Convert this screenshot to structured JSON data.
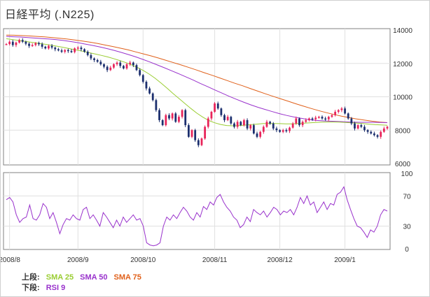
{
  "title": "日経平均 (.N225)",
  "legend": {
    "upper_label": "上段:",
    "lower_label": "下段:",
    "sma25": "SMA 25",
    "sma50": "SMA 50",
    "sma75": "SMA 75",
    "rsi9": "RSI 9"
  },
  "colors": {
    "up_candle": "#e8245a",
    "down_candle": "#1c2f6e",
    "sma25": "#9acd32",
    "sma50": "#9932cc",
    "sma75": "#e0601a",
    "rsi": "#9932cc",
    "grid": "#e0e0e0",
    "frame": "#808080"
  },
  "chart_data": [
    {
      "type": "candlestick",
      "name": "price",
      "title": "",
      "ylim": [
        6000,
        14000
      ],
      "y_ticks": [
        "14000",
        "12000",
        "10000",
        "8000",
        "6000"
      ],
      "y_tick_values": [
        14000,
        12000,
        10000,
        8000,
        6000
      ],
      "x_ticks": [
        "2008/8",
        "2008/9",
        "2008/10",
        "2008/11",
        "2008/12",
        "2009/1"
      ],
      "x_tick_index": [
        1,
        22,
        42,
        64,
        84,
        104
      ],
      "grid": true,
      "closes": [
        13160,
        13300,
        13100,
        13250,
        13400,
        13300,
        13180,
        13050,
        13100,
        13220,
        13150,
        13000,
        12900,
        13050,
        12950,
        12850,
        12780,
        12700,
        12800,
        12750,
        12680,
        12900,
        12950,
        12850,
        12700,
        12500,
        12300,
        12200,
        12100,
        11950,
        11800,
        11600,
        11750,
        11950,
        12050,
        11850,
        11700,
        11950,
        12050,
        11900,
        11600,
        11300,
        10900,
        10500,
        10200,
        9800,
        9200,
        8600,
        8300,
        8900,
        8700,
        9000,
        8500,
        8800,
        9200,
        8300,
        7600,
        8000,
        7400,
        7100,
        7500,
        8200,
        8700,
        9100,
        9600,
        9300,
        8900,
        8600,
        8800,
        8400,
        8200,
        8500,
        8300,
        8600,
        8100,
        8300,
        7800,
        7600,
        7900,
        8200,
        8500,
        8400,
        8100,
        8000,
        7900,
        8000,
        7950,
        8150,
        8400,
        8700,
        8300,
        8500,
        8600,
        8700,
        8650,
        8750,
        8800,
        8700,
        8650,
        8800,
        8900,
        9100,
        9200,
        9300,
        9000,
        8700,
        8400,
        8100,
        8300,
        8200,
        8000,
        7900,
        7800,
        7700,
        7600,
        7900,
        8100,
        8200
      ],
      "sma25": [
        13480,
        13430,
        13380,
        13330,
        13280,
        13230,
        13180,
        13120,
        13060,
        13000,
        12930,
        12860,
        12790,
        12720,
        12640,
        12560,
        12480,
        12390,
        12290,
        12180,
        12060,
        11920,
        11760,
        11580,
        11360,
        11110,
        10820,
        10520,
        10200,
        9900,
        9600,
        9300,
        9020,
        8780,
        8580,
        8440,
        8340,
        8280,
        8260,
        8270,
        8300,
        8330,
        8360,
        8390,
        8400,
        8400,
        8390,
        8380,
        8380,
        8400,
        8420,
        8440,
        8460,
        8480,
        8490,
        8490,
        8480,
        8460,
        8440,
        8420,
        8390,
        8360,
        8330,
        8310,
        8290
      ],
      "sma50": [
        13620,
        13600,
        13580,
        13550,
        13520,
        13490,
        13460,
        13420,
        13370,
        13310,
        13240,
        13160,
        13080,
        12990,
        12890,
        12780,
        12660,
        12530,
        12390,
        12240,
        12080,
        11910,
        11740,
        11560,
        11380,
        11190,
        11000,
        10800,
        10610,
        10410,
        10220,
        10030,
        9850,
        9680,
        9520,
        9370,
        9240,
        9110,
        8990,
        8880,
        8790,
        8710,
        8640,
        8590,
        8560,
        8540,
        8520,
        8500,
        8480,
        8470,
        8470,
        8470,
        8460,
        8450
      ],
      "sma75": [
        13700,
        13690,
        13670,
        13650,
        13620,
        13590,
        13550,
        13510,
        13460,
        13400,
        13340,
        13270,
        13190,
        13100,
        13010,
        12910,
        12810,
        12690,
        12570,
        12450,
        12320,
        12180,
        12040,
        11900,
        11750,
        11600,
        11440,
        11290,
        11130,
        10970,
        10810,
        10660,
        10500,
        10340,
        10180,
        10030,
        9880,
        9730,
        9580,
        9440,
        9300,
        9170,
        9050,
        8940,
        8840,
        8750,
        8670,
        8600,
        8540,
        8490,
        8450
      ]
    },
    {
      "type": "line",
      "name": "RSI 9",
      "title": "",
      "ylim": [
        0,
        100
      ],
      "y_ticks": [
        "100",
        "70",
        "30",
        "0"
      ],
      "y_tick_values": [
        100,
        70,
        30,
        0
      ],
      "grid": true,
      "values": [
        65,
        68,
        62,
        45,
        35,
        40,
        42,
        58,
        40,
        38,
        45,
        60,
        55,
        40,
        48,
        35,
        20,
        32,
        40,
        38,
        45,
        40,
        38,
        52,
        55,
        40,
        45,
        38,
        30,
        48,
        42,
        35,
        28,
        38,
        30,
        42,
        35,
        40,
        45,
        38,
        40,
        30,
        8,
        5,
        4,
        5,
        8,
        30,
        42,
        38,
        45,
        40,
        48,
        55,
        50,
        42,
        38,
        48,
        42,
        56,
        52,
        62,
        58,
        68,
        72,
        62,
        55,
        50,
        42,
        38,
        28,
        32,
        42,
        36,
        52,
        48,
        45,
        50,
        42,
        48,
        55,
        52,
        45,
        50,
        48,
        52,
        45,
        55,
        68,
        60,
        70,
        58,
        62,
        48,
        55,
        62,
        52,
        60,
        58,
        72,
        75,
        82,
        65,
        52,
        40,
        30,
        28,
        22,
        15,
        25,
        22,
        30,
        45,
        52,
        50
      ],
      "x_ticks": [
        "2008/8",
        "2008/9",
        "2008/10",
        "2008/11",
        "2008/12",
        "2009/1"
      ]
    }
  ]
}
